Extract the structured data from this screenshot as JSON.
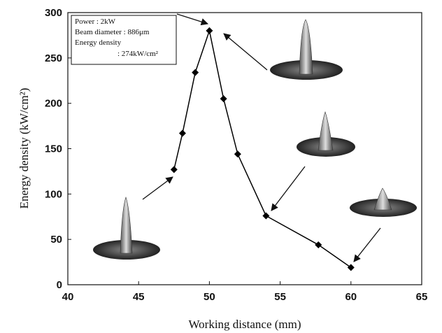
{
  "chart_data": {
    "type": "line",
    "x_label": "Working distance (mm)",
    "y_label": "Energy density (kW/cm²)",
    "annotation": [
      "Power : 2kW",
      "Beam diameter : 886μm",
      "Energy density",
      ": 274kW/cm²"
    ],
    "x": [
      47.5,
      48.1,
      49,
      50,
      51,
      52,
      54,
      57.7,
      60
    ],
    "values": [
      127,
      167,
      234,
      280,
      205,
      144,
      76,
      44,
      19
    ],
    "color": "#000000",
    "xlim": [
      40,
      65
    ],
    "xticks": [
      40,
      45,
      50,
      55,
      60,
      65
    ],
    "ylim": [
      0,
      300
    ],
    "yticks": [
      0,
      50,
      100,
      150,
      200,
      250,
      300
    ]
  }
}
